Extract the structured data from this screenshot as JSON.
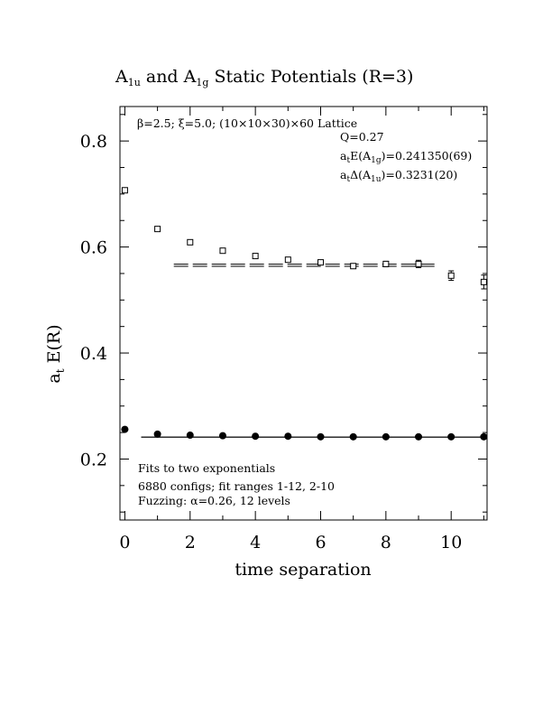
{
  "title_main": "A",
  "title_sub1": "1u",
  "title_mid": " and A",
  "title_sub2": "1g",
  "title_end": " Static Potentials (R=3)",
  "ylabel_main": "a",
  "ylabel_sub": "t",
  "ylabel_end": " E(R)",
  "xlabel": "time separation",
  "info_lattice": "β=2.5; ξ=5.0; (10×10×30)×60 Lattice",
  "info_q": "Q=0.27",
  "info_energy_pre": "a",
  "info_energy_sub": "t",
  "info_energy_mid": "E(A",
  "info_energy_sub2": "1g",
  "info_energy_val": ")=0.241350(69)",
  "info_delta_pre": "a",
  "info_delta_sub": "t",
  "info_delta_mid": "Δ(A",
  "info_delta_sub2": "1u",
  "info_delta_val": ")=0.3231(20)",
  "note1": "Fits to two exponentials",
  "note2": "6880 configs; fit ranges 1-12, 2-10",
  "note3": "Fuzzing: α=0.26, 12 levels",
  "chart_data": {
    "type": "scatter",
    "xlim": [
      -0.15,
      11.1
    ],
    "ylim": [
      0.085,
      0.865
    ],
    "xticks": [
      0,
      2,
      4,
      6,
      8,
      10
    ],
    "yticks": [
      0.2,
      0.4,
      0.6,
      0.8
    ],
    "xtick_labels": [
      "0",
      "2",
      "4",
      "6",
      "8",
      "10"
    ],
    "ytick_labels": [
      "0.2",
      "0.4",
      "0.6",
      "0.8"
    ],
    "series": [
      {
        "marker": "open-square",
        "x": [
          0,
          1,
          2,
          3,
          4,
          5,
          6,
          7,
          8,
          9,
          10,
          11
        ],
        "y": [
          0.707,
          0.634,
          0.609,
          0.593,
          0.583,
          0.576,
          0.571,
          0.564,
          0.568,
          0.568,
          0.546,
          0.534
        ],
        "err": [
          0.002,
          0.002,
          0.002,
          0.002,
          0.002,
          0.002,
          0.002,
          0.003,
          0.005,
          0.007,
          0.009,
          0.013
        ]
      },
      {
        "marker": "filled-circle",
        "x": [
          0,
          1,
          2,
          3,
          4,
          5,
          6,
          7,
          8,
          9,
          10,
          11
        ],
        "y": [
          0.256,
          0.247,
          0.245,
          0.244,
          0.243,
          0.243,
          0.242,
          0.242,
          0.242,
          0.242,
          0.242,
          0.242
        ]
      }
    ],
    "fit_bands": [
      {
        "x": [
          1.5,
          9.5
        ],
        "y": [
          0.5675,
          0.5635
        ],
        "style": "dashed"
      },
      {
        "x": [
          0.5,
          11.1
        ],
        "y": [
          0.2414,
          0.2413
        ],
        "style": "solid"
      }
    ]
  }
}
